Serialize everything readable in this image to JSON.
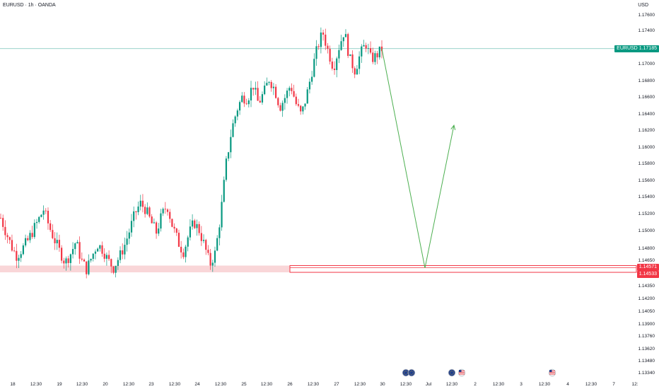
{
  "header": {
    "symbol": "EURUSD · 1h · OANDA",
    "currency": "USD"
  },
  "price_tags": {
    "current_label": "EURUSD",
    "current_value": "1.17185",
    "support_upper": "1.14571",
    "support_lower": "1.14533"
  },
  "colors": {
    "up": "#089981",
    "down": "#f23645",
    "support_fill": "#f7c5c8",
    "support_line": "#f23645",
    "projection": "#4caf50",
    "current_line": "#1e9b8a"
  },
  "event_icons": [
    "eu-flag-icon",
    "eu-flag-icon",
    "eu-flag-icon",
    "us-flag-icon",
    "us-flag-icon"
  ],
  "chart_data": {
    "type": "candlestick",
    "title": "EURUSD · 1h · OANDA",
    "ylim": [
      1.1334,
      1.1772
    ],
    "y_ticks": [
      "1.17600",
      "1.17400",
      "1.17200",
      "1.17000",
      "1.16800",
      "1.16600",
      "1.16400",
      "1.16200",
      "1.16000",
      "1.15800",
      "1.15600",
      "1.15400",
      "1.15200",
      "1.15000",
      "1.14800",
      "1.14650",
      "1.14500",
      "1.14350",
      "1.14200",
      "1.14050",
      "1.13900",
      "1.13760",
      "1.13620",
      "1.13480",
      "1.13340"
    ],
    "x_ticks": [
      "18",
      "12:30",
      "19",
      "12:30",
      "20",
      "12:30",
      "23",
      "12:30",
      "24",
      "12:30",
      "25",
      "12:30",
      "26",
      "12:30",
      "27",
      "12:30",
      "30",
      "12:30",
      "Jul",
      "12:30",
      "2",
      "12:30",
      "3",
      "12:30",
      "4",
      "12:30",
      "7",
      "12:"
    ],
    "current_price": 1.17185,
    "support_zone": [
      1.14533,
      1.14571
    ],
    "trend_closes": [
      1.1515,
      1.1498,
      1.1482,
      1.147,
      1.1479,
      1.1488,
      1.15,
      1.1512,
      1.1525,
      1.1505,
      1.149,
      1.1476,
      1.1462,
      1.1473,
      1.1488,
      1.1465,
      1.1454,
      1.147,
      1.1485,
      1.1478,
      1.1465,
      1.1456,
      1.1468,
      1.1482,
      1.15,
      1.152,
      1.1532,
      1.1525,
      1.151,
      1.1498,
      1.1518,
      1.153,
      1.1505,
      1.1488,
      1.1475,
      1.1495,
      1.151,
      1.15,
      1.1482,
      1.146,
      1.1475,
      1.152,
      1.158,
      1.162,
      1.1645,
      1.166,
      1.1658,
      1.1675,
      1.1652,
      1.1665,
      1.1682,
      1.167,
      1.1648,
      1.166,
      1.1675,
      1.1652,
      1.1638,
      1.1662,
      1.1692,
      1.172,
      1.1738,
      1.1715,
      1.1695,
      1.172,
      1.174,
      1.1706,
      1.1692,
      1.1712,
      1.1725,
      1.1705,
      1.171,
      1.1718
    ],
    "projection": [
      1.17185,
      1.1456,
      1.1626
    ]
  }
}
